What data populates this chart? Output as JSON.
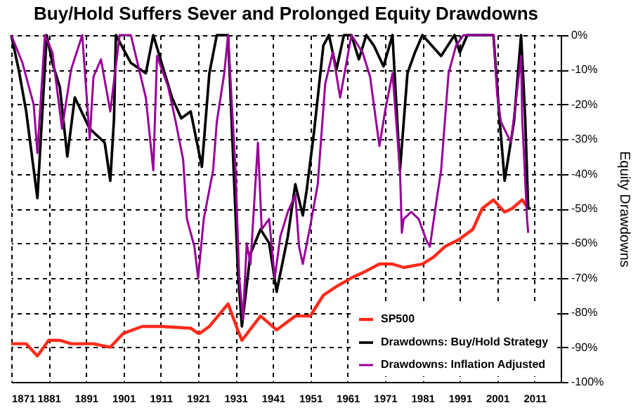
{
  "chart_data": {
    "type": "line",
    "title": "Buy/Hold Suffers Sever and Prolonged Equity Drawdowns",
    "ylabel": "Equity Drawdowns",
    "xlim": [
      1871,
      2018
    ],
    "xticks": [
      1871,
      1881,
      1891,
      1901,
      1911,
      1921,
      1931,
      1941,
      1951,
      1961,
      1971,
      1981,
      1991,
      2001,
      2011
    ],
    "ylim": [
      -100,
      0
    ],
    "yticks": [
      {
        "value": 0,
        "label": "0%"
      },
      {
        "value": -10,
        "label": "-10%"
      },
      {
        "value": -20,
        "label": "-20%"
      },
      {
        "value": -30,
        "label": "-30%"
      },
      {
        "value": -40,
        "label": "-40%"
      },
      {
        "value": -50,
        "label": "-50%"
      },
      {
        "value": -60,
        "label": "-60%"
      },
      {
        "value": -70,
        "label": "-70%"
      },
      {
        "value": -80,
        "label": "-80%"
      },
      {
        "value": -90,
        "label": "-90%"
      },
      {
        "value": -100,
        "label": "-100%"
      }
    ],
    "grid": true,
    "legend": "bottom right",
    "series": [
      {
        "name": "SP500",
        "color": "#ff2a1a",
        "x": [
          1871,
          1875,
          1878,
          1881,
          1884,
          1887,
          1893,
          1897.5,
          1901,
          1906,
          1911,
          1919,
          1921,
          1921.4,
          1924,
          1929,
          1931.6,
          1932.7,
          1937.7,
          1942,
          1947,
          1951,
          1954.5,
          1958,
          1962,
          1966,
          1969.5,
          1973,
          1976,
          1981,
          1984,
          1987,
          1990.7,
          1994.5,
          1997,
          2000,
          2003,
          2005,
          2007.7,
          2009.3
        ],
        "values": [
          -89,
          -89,
          -92.5,
          -88,
          -88,
          -89,
          -89,
          -90,
          -86,
          -84,
          -84,
          -84.5,
          -86,
          -86,
          -84,
          -77.5,
          -85,
          -88,
          -81,
          -85,
          -81,
          -81,
          -75,
          -72.5,
          -70,
          -68,
          -66,
          -66,
          -67,
          -66,
          -64,
          -61,
          -59,
          -56,
          -50,
          -47.5,
          -51,
          -50,
          -47.5,
          -50
        ]
      },
      {
        "name": "Drawdowns: Buy/Hold Strategy",
        "color": "#000000",
        "x": [
          1871,
          1873,
          1875,
          1878,
          1880.5,
          1882,
          1884,
          1886,
          1888,
          1892,
          1896,
          1897.5,
          1898.5,
          1899,
          1903,
          1907,
          1909,
          1914,
          1916.5,
          1919,
          1922,
          1924,
          1926,
          1929,
          1931.6,
          1932.7,
          1935,
          1937.7,
          1940,
          1942,
          1945,
          1947,
          1949,
          1950,
          1952,
          1954.5,
          1956,
          1958,
          1960,
          1962,
          1964,
          1966,
          1968,
          1970.6,
          1973,
          1975,
          1977,
          1979,
          1981,
          1986,
          1989.6,
          1991,
          1993,
          2000,
          2001.7,
          2003,
          2005.5,
          2007.4,
          2008.5,
          2009.3,
          2010
        ],
        "values": [
          0,
          -10,
          -22,
          -47,
          0,
          -8,
          -15,
          -35,
          -18,
          -27,
          -31,
          -42,
          -24,
          0,
          -8,
          -11,
          0,
          -18,
          -24,
          -22,
          -38,
          -11,
          0,
          0,
          -67,
          -84,
          -63,
          -56,
          -60,
          -74,
          -58,
          -43,
          -52,
          -45,
          -28,
          -3,
          0,
          -10,
          0,
          0,
          -7,
          0,
          -3,
          -9,
          0,
          -39,
          -11,
          -5,
          0,
          -6,
          0,
          -5,
          0,
          0,
          -25,
          -42,
          -25,
          0,
          -24,
          -50,
          -50
        ]
      },
      {
        "name": "Drawdowns: Inflation Adjusted",
        "color": "#990099",
        "x": [
          1871,
          1874,
          1877,
          1878,
          1880,
          1882,
          1884.6,
          1887,
          1890,
          1892,
          1893,
          1895,
          1897.5,
          1900,
          1903,
          1905,
          1907,
          1909,
          1910,
          1913,
          1915,
          1917,
          1918,
          1920,
          1921,
          1922.5,
          1925,
          1926,
          1928,
          1929,
          1931,
          1932,
          1933,
          1934,
          1935,
          1937,
          1938,
          1940,
          1941.5,
          1943,
          1945,
          1947,
          1948,
          1949,
          1951,
          1953,
          1955,
          1957,
          1959,
          1962,
          1965,
          1967,
          1969.5,
          1971,
          1973,
          1975,
          1975.5,
          1976,
          1978,
          1980,
          1982,
          1983,
          1985,
          1986,
          1987,
          1988,
          1990,
          1992,
          2000,
          2001,
          2002,
          2004.7,
          2007.4,
          2007.7,
          2009,
          2009.3
        ],
        "values": [
          0,
          -8,
          -20,
          -34,
          0,
          -5,
          -27,
          -10,
          0,
          -30,
          -12,
          -7,
          -22,
          0,
          0,
          -9,
          -18,
          -39,
          -6,
          -15,
          -25,
          -36,
          -53,
          -61,
          -70,
          -53,
          -39,
          -25,
          -11,
          0,
          -39,
          -70,
          -82,
          -60,
          -66,
          -31,
          -56,
          -53,
          -70,
          -58,
          -51,
          -46,
          -61,
          -66,
          -55,
          -43,
          -14,
          -5,
          -18,
          0,
          -5,
          -12,
          -32,
          -22,
          -11,
          -39,
          -57,
          -53,
          -51,
          -53,
          -59,
          -61,
          -46,
          -39,
          -25,
          -11,
          -3,
          0,
          0,
          -17,
          -25,
          -31,
          -6,
          -24,
          -53,
          -57
        ]
      }
    ]
  }
}
